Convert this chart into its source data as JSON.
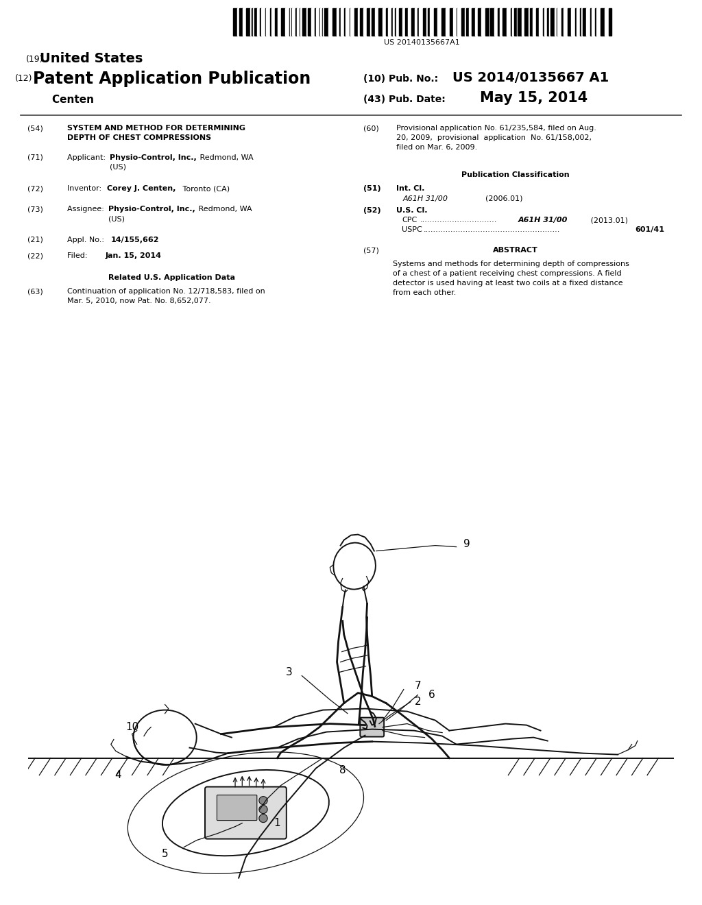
{
  "background_color": "#ffffff",
  "barcode_text": "US 20140135667A1",
  "header_19_small": "(19)",
  "header_19_large": "United States",
  "header_12_small": "(12)",
  "header_12_large": "Patent Application Publication",
  "header_name": "    Centen",
  "header_10_label": "(10) Pub. No.:",
  "header_10_value": "US 2014/0135667 A1",
  "header_43_label": "(43) Pub. Date:",
  "header_43_value": "May 15, 2014",
  "field_54_label": "(54)",
  "field_54_title1": "SYSTEM AND METHOD FOR DETERMINING",
  "field_54_title2": "DEPTH OF CHEST COMPRESSIONS",
  "field_71_label": "(71)",
  "field_72_label": "(72)",
  "field_73_label": "(73)",
  "field_21_label": "(21)",
  "field_22_label": "(22)",
  "field_63_label": "(63)",
  "field_60_label": "(60)",
  "field_51_label": "(51)",
  "field_52_label": "(52)",
  "field_57_label": "(57)",
  "field_60_line1": "Provisional application No. 61/235,584, filed on Aug.",
  "field_60_line2": "20, 2009,  provisional  application  No. 61/158,002,",
  "field_60_line3": "filed on Mar. 6, 2009.",
  "pub_class_header": "Publication Classification",
  "field_51_text": "Int. Cl.",
  "field_51_class": "A61H 31/00",
  "field_51_year": "(2006.01)",
  "field_52_text": "U.S. Cl.",
  "field_52_cpc_dots": "...............................",
  "field_52_cpc_class": "A61H 31/00",
  "field_52_cpc_year": "(2013.01)",
  "field_52_uspc_dots": ".......................................................",
  "field_52_uspc_value": "601/41",
  "field_57_header": "ABSTRACT",
  "field_57_line1": "Systems and methods for determining depth of compressions",
  "field_57_line2": "of a chest of a patient receiving chest compressions. A field",
  "field_57_line3": "detector is used having at least two coils at a fixed distance",
  "field_57_line4": "from each other.",
  "related_header": "Related U.S. Application Data",
  "field_63_line1": "Continuation of application No. 12/718,583, filed on",
  "field_63_line2": "Mar. 5, 2010, now Pat. No. 8,652,077."
}
